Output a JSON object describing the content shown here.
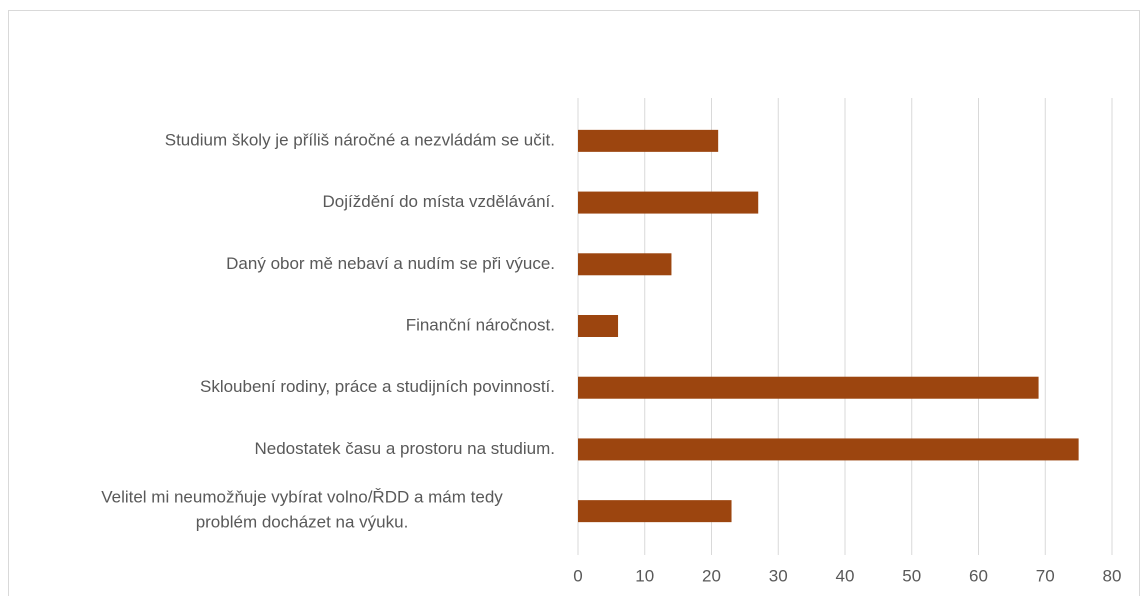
{
  "chart_data": {
    "type": "bar",
    "orientation": "horizontal",
    "categories": [
      "Studium školy je příliš náročné a nezvládám se učit.",
      "Dojíždění do místa vzdělávání.",
      "Daný obor mě nebaví a nudím se při výuce.",
      "Finanční náročnost.",
      "Skloubení rodiny, práce a studijních povinností.",
      "Nedostatek času a prostoru na studium.",
      "Velitel mi neumožňuje vybírat volno/ŘDD a mám tedy\nproblém docházet na výuku."
    ],
    "values": [
      21,
      27,
      14,
      6,
      69,
      75,
      23
    ],
    "color": "#9c450f",
    "xlim": [
      0,
      80
    ],
    "xticks": [
      0,
      10,
      20,
      30,
      40,
      50,
      60,
      70,
      80
    ],
    "grid": true
  }
}
